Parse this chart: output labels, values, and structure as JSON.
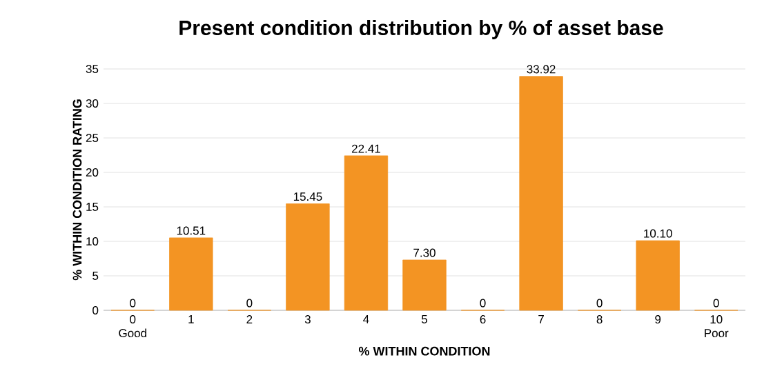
{
  "chart_data": {
    "type": "bar",
    "title": "Present condition distribution by % of asset base",
    "xlabel": "% WITHIN CONDITION",
    "ylabel": "% WITHIN CONDITION RATING",
    "categories": [
      "0 Good",
      "1",
      "2",
      "3",
      "4",
      "5",
      "6",
      "7",
      "8",
      "9",
      "10 Poor"
    ],
    "values": [
      0,
      10.51,
      0,
      15.45,
      22.41,
      7.3,
      0,
      33.92,
      0,
      10.1,
      0
    ],
    "value_labels": [
      "0",
      "10.51",
      "0",
      "15.45",
      "22.41",
      "7.30",
      "0",
      "33.92",
      "0",
      "10.10",
      "0"
    ],
    "color": "#f39423",
    "ylim": [
      0,
      35
    ],
    "yticks": [
      0,
      5,
      10,
      15,
      20,
      25,
      30,
      35
    ],
    "grid": "y",
    "data_labels": true
  }
}
